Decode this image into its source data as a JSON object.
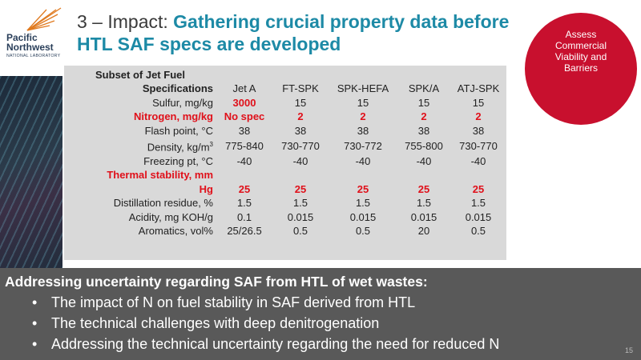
{
  "org": {
    "line1": "Pacific",
    "line2": "Northwest",
    "line3": "NATIONAL LABORATORY"
  },
  "title": {
    "prefix": "3 – Impact: ",
    "highlight": "Gathering crucial property data before HTL SAF specs are developed"
  },
  "badge": "Assess Commercial Viability and Barriers",
  "table": {
    "header_top": "Subset of Jet Fuel",
    "header_row": "Specifications",
    "columns": [
      "Jet A",
      "FT-SPK",
      "SPK-HEFA",
      "SPK/A",
      "ATJ-SPK"
    ],
    "rows": [
      {
        "label": "Sulfur, mg/kg",
        "values": [
          "3000",
          "15",
          "15",
          "15",
          "15"
        ]
      },
      {
        "label": "Nitrogen, mg/kg",
        "values": [
          "No spec",
          "2",
          "2",
          "2",
          "2"
        ]
      },
      {
        "label": "Flash point, °C",
        "values": [
          "38",
          "38",
          "38",
          "38",
          "38"
        ]
      },
      {
        "label": "Density, kg/m",
        "label_sup": "3",
        "values": [
          "775-840",
          "730-770",
          "730-772",
          "755-800",
          "730-770"
        ]
      },
      {
        "label": "Freezing pt, °C",
        "values": [
          "-40",
          "-40",
          "-40",
          "-40",
          "-40"
        ]
      },
      {
        "label_top": "Thermal stability, mm",
        "label": "Hg",
        "values": [
          "25",
          "25",
          "25",
          "25",
          "25"
        ]
      },
      {
        "label": "Distillation residue, %",
        "values": [
          "1.5",
          "1.5",
          "1.5",
          "1.5",
          "1.5"
        ]
      },
      {
        "label": "Acidity, mg KOH/g",
        "values": [
          "0.1",
          "0.015",
          "0.015",
          "0.015",
          "0.015"
        ]
      },
      {
        "label": "Aromatics, vol%",
        "values": [
          "25/26.5",
          "0.5",
          "0.5",
          "20",
          "0.5"
        ]
      }
    ]
  },
  "bottom": {
    "heading": "Addressing uncertainty regarding SAF from HTL of wet wastes:",
    "bullets": [
      "The impact of N on fuel stability in SAF derived from HTL",
      "The technical challenges with deep denitrogenation",
      "Addressing the technical uncertainty regarding the need for reduced N"
    ]
  },
  "page_number": "15",
  "colors": {
    "accent": "#1d8aa6",
    "badge": "#c8102e",
    "highlight_red": "#e0101a",
    "bottom_bg": "#595959"
  }
}
